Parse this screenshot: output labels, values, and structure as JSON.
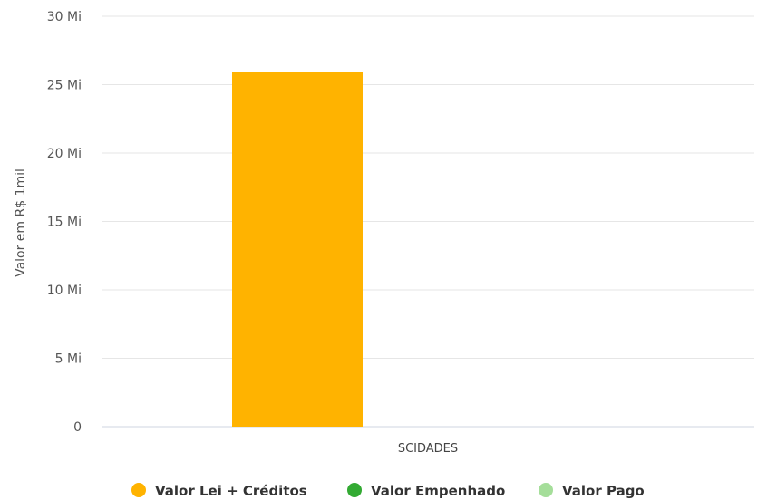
{
  "chart_data": {
    "type": "bar",
    "title": "",
    "ylabel": "Valor em R$ 1mil",
    "xlabel": "",
    "categories": [
      "SCIDADES"
    ],
    "ylim": [
      0,
      30000000
    ],
    "yticks": [
      {
        "value": 0,
        "label": "0"
      },
      {
        "value": 5000000,
        "label": "5 Mi"
      },
      {
        "value": 10000000,
        "label": "10 Mi"
      },
      {
        "value": 15000000,
        "label": "15 Mi"
      },
      {
        "value": 20000000,
        "label": "20 Mi"
      },
      {
        "value": 25000000,
        "label": "25 Mi"
      },
      {
        "value": 30000000,
        "label": "30 Mi"
      }
    ],
    "series": [
      {
        "name": "Valor Lei + Créditos",
        "color": "#FFB300",
        "values": [
          25900000
        ]
      },
      {
        "name": "Valor Empenhado",
        "color": "#33AA33",
        "values": [
          0
        ]
      },
      {
        "name": "Valor Pago",
        "color": "#A5DE9A",
        "values": [
          0
        ]
      }
    ],
    "grid": true,
    "legend": "bottom-center"
  }
}
